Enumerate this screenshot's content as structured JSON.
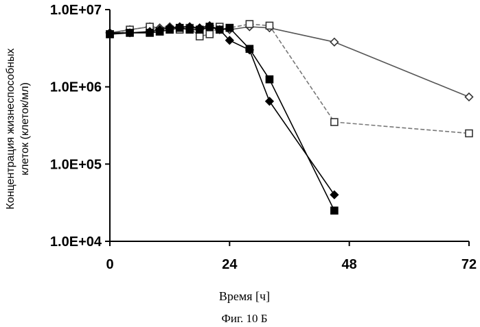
{
  "chart_data": {
    "type": "line",
    "scale_y": "log",
    "xlim": [
      0,
      72
    ],
    "ylim": [
      10000,
      10000000
    ],
    "x_ticks": [
      0,
      24,
      48,
      72
    ],
    "x_tick_labels": [
      "0",
      "24",
      "48",
      "72"
    ],
    "y_ticks": [
      10000,
      100000,
      1000000,
      10000000
    ],
    "y_tick_labels": [
      "1.0E+04",
      "1.0E+05",
      "1.0E+06",
      "1.0E+07"
    ],
    "ylabel_lines": [
      "Концентрация жизнеспособных",
      "клеток (клеток/мл)"
    ],
    "xlabel": "Время [ч]",
    "caption": "Фиг. 10 Б",
    "grid": false,
    "series": [
      {
        "marker": "diamond-open",
        "color": "#555555",
        "dashed": false,
        "x": [
          0,
          4,
          8,
          10,
          12,
          14,
          16,
          18,
          20,
          22,
          24,
          28,
          32,
          45,
          72
        ],
        "y": [
          5000000,
          5500000,
          6000000,
          5800000,
          6000000,
          5800000,
          6000000,
          5500000,
          5800000,
          5600000,
          5500000,
          6000000,
          5800000,
          3800000,
          740000
        ]
      },
      {
        "marker": "square-open",
        "color": "#777777",
        "dashed": true,
        "x": [
          0,
          4,
          8,
          10,
          12,
          14,
          16,
          18,
          20,
          22,
          24,
          28,
          32,
          45,
          72
        ],
        "y": [
          4800000,
          5500000,
          6000000,
          5200000,
          5500000,
          5500000,
          5800000,
          4500000,
          4800000,
          6000000,
          5800000,
          6500000,
          6200000,
          350000,
          250000
        ]
      },
      {
        "marker": "diamond-filled",
        "color": "#000000",
        "dashed": false,
        "x": [
          0,
          4,
          8,
          10,
          12,
          14,
          16,
          18,
          20,
          22,
          24,
          28,
          32,
          45
        ],
        "y": [
          5000000,
          5000000,
          5200000,
          5500000,
          5800000,
          6000000,
          6000000,
          5800000,
          6200000,
          5500000,
          4000000,
          3000000,
          650000,
          40000
        ]
      },
      {
        "marker": "square-filled",
        "color": "#000000",
        "dashed": false,
        "x": [
          0,
          4,
          8,
          10,
          12,
          14,
          16,
          18,
          20,
          22,
          24,
          28,
          32,
          45
        ],
        "y": [
          4800000,
          5000000,
          5000000,
          5200000,
          5500000,
          5800000,
          5500000,
          5500000,
          6000000,
          5500000,
          5800000,
          3100000,
          1250000,
          25000
        ]
      }
    ]
  }
}
